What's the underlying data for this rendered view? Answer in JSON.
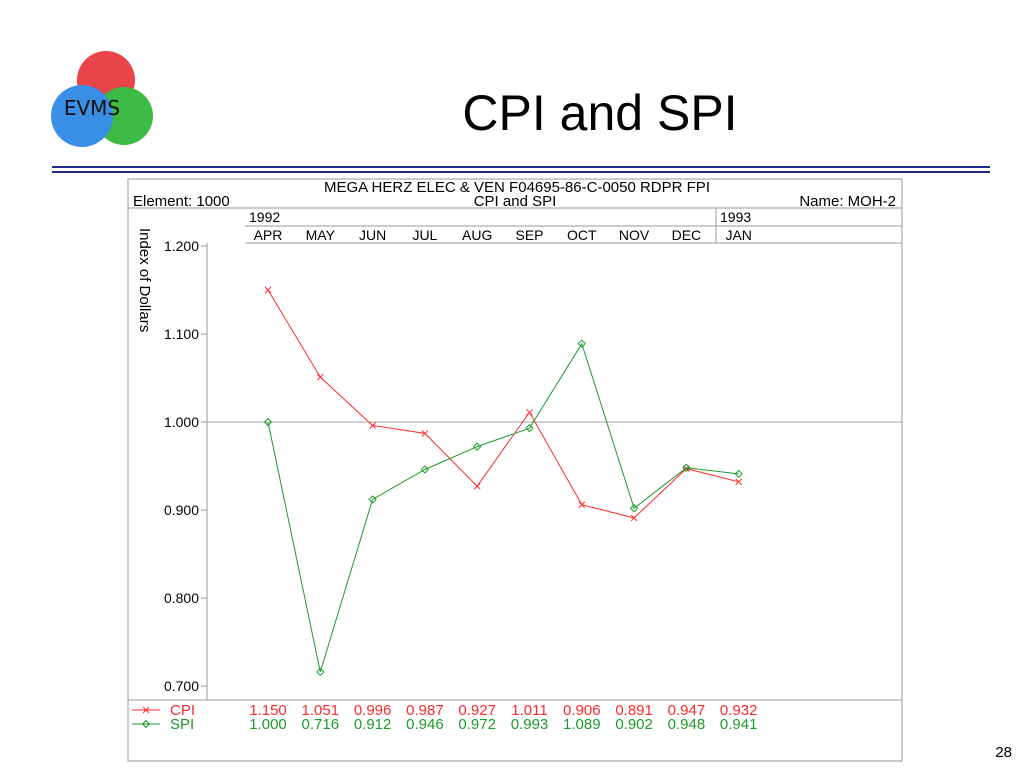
{
  "slide": {
    "title": "CPI and SPI",
    "page_number": "28",
    "logo_text": "EVMS",
    "colors": {
      "rule": "#1f2d8a",
      "logo_red": "#e8444a",
      "logo_green": "#3dbb44",
      "logo_blue": "#3b8ee6"
    }
  },
  "chart_data": {
    "type": "line",
    "header": {
      "line1": "MEGA HERZ ELEC & VEN F04695-86-C-0050 RDPR FPI",
      "element": "Element: 1000",
      "subtitle": "CPI and SPI",
      "name": "Name: MOH-2",
      "years": [
        {
          "label": "1992",
          "span": 9
        },
        {
          "label": "1993",
          "span": 1
        }
      ]
    },
    "categories": [
      "APR",
      "MAY",
      "JUN",
      "JUL",
      "AUG",
      "SEP",
      "OCT",
      "NOV",
      "DEC",
      "JAN"
    ],
    "ylabel": "Index of Dollars",
    "ylim": [
      0.7,
      1.2
    ],
    "yticks": [
      "0.700",
      "0.800",
      "0.900",
      "1.000",
      "1.100",
      "1.200"
    ],
    "reference_line": 1.0,
    "series": [
      {
        "name": "CPI",
        "color": "#ff2a2a",
        "marker": "x",
        "values": [
          1.15,
          1.051,
          0.996,
          0.987,
          0.927,
          1.011,
          0.906,
          0.891,
          0.947,
          0.932
        ],
        "labels": [
          "1.150",
          "1.051",
          "0.996",
          "0.987",
          "0.927",
          "1.011",
          "0.906",
          "0.891",
          "0.947",
          "0.932"
        ]
      },
      {
        "name": "SPI",
        "color": "#1e9a2e",
        "marker": "diamond",
        "values": [
          1.0,
          0.716,
          0.912,
          0.946,
          0.972,
          0.993,
          1.089,
          0.902,
          0.948,
          0.941
        ],
        "labels": [
          "1.000",
          "0.716",
          "0.912",
          "0.946",
          "0.972",
          "0.993",
          "1.089",
          "0.902",
          "0.948",
          "0.941"
        ]
      }
    ]
  }
}
